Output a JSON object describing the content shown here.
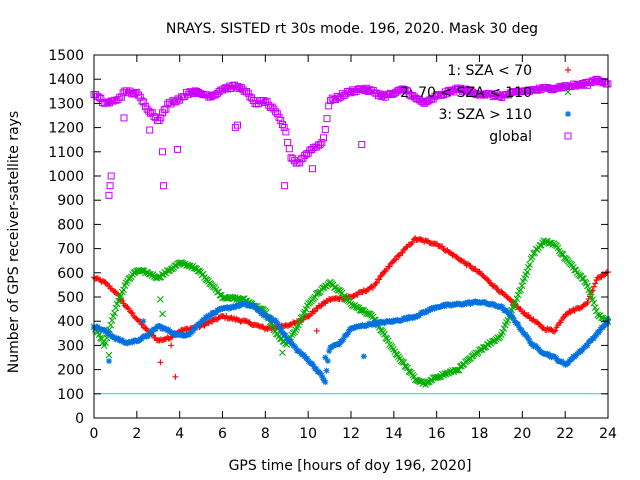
{
  "chart_data": {
    "type": "scatter",
    "title": "NRAYS. SISTED rt 30s mode. 196, 2020. Mask 30 deg",
    "xlabel": "GPS time [hours of doy 196, 2020]",
    "ylabel": "Number of GPS receiver-satellite rays",
    "xlim": [
      0,
      24
    ],
    "ylim": [
      0,
      1500
    ],
    "xticks": [
      0,
      2,
      4,
      6,
      8,
      10,
      12,
      14,
      16,
      18,
      20,
      22,
      24
    ],
    "yticks": [
      0,
      100,
      200,
      300,
      400,
      500,
      600,
      700,
      800,
      900,
      1000,
      1100,
      1200,
      1300,
      1400,
      1500
    ],
    "legend_position": "top-right",
    "reference_line": {
      "y": 100,
      "color": "#33cccc"
    },
    "series": [
      {
        "name": "1: SZA < 70",
        "marker": "+",
        "color": "#ff0000",
        "x": [
          0,
          0.5,
          1,
          1.5,
          2,
          2.5,
          3,
          3.5,
          4,
          5,
          6,
          7,
          8,
          9,
          10,
          10.5,
          11,
          12,
          13,
          14,
          15,
          16,
          17,
          18,
          19,
          20,
          21,
          21.5,
          22,
          23,
          23.5,
          24
        ],
        "y": [
          580,
          560,
          520,
          460,
          410,
          360,
          320,
          330,
          360,
          380,
          420,
          400,
          370,
          380,
          420,
          460,
          490,
          500,
          540,
          650,
          740,
          720,
          660,
          600,
          520,
          440,
          370,
          360,
          430,
          470,
          580,
          600
        ],
        "outliers_x": [
          3.1,
          3.6,
          3.8,
          10.4,
          13.5
        ],
        "outliers_y": [
          230,
          300,
          170,
          360,
          600
        ]
      },
      {
        "name": "2: 70 < SZA < 110",
        "marker": "x",
        "color": "#00b000",
        "x": [
          0,
          0.5,
          1,
          1.5,
          2,
          2.5,
          3,
          3.5,
          4,
          4.5,
          5,
          5.5,
          6,
          7,
          8,
          8.5,
          9,
          9.5,
          10,
          10.5,
          11,
          11.5,
          12,
          13,
          14,
          15,
          15.5,
          16,
          17,
          18,
          19,
          20,
          20.5,
          21,
          21.5,
          22,
          23,
          23.5,
          24
        ],
        "y": [
          380,
          300,
          450,
          560,
          610,
          600,
          580,
          610,
          640,
          630,
          600,
          550,
          500,
          490,
          440,
          350,
          300,
          380,
          470,
          520,
          560,
          520,
          470,
          420,
          280,
          160,
          140,
          170,
          200,
          280,
          340,
          550,
          680,
          730,
          720,
          660,
          560,
          430,
          400
        ],
        "outliers_x": [
          0.7,
          3.1,
          3.2,
          8.8
        ],
        "outliers_y": [
          260,
          490,
          430,
          270
        ]
      },
      {
        "name": "3: SZA > 110",
        "marker": "*",
        "color": "#0070e0",
        "x": [
          0,
          0.5,
          1,
          1.5,
          2,
          2.5,
          3,
          3.5,
          4,
          4.5,
          5,
          5.5,
          6,
          7,
          7.5,
          8,
          8.5,
          9,
          9.5,
          10,
          10.5,
          10.8,
          11,
          11.5,
          12,
          13,
          14,
          15,
          16,
          17,
          18,
          19,
          19.5,
          20,
          20.5,
          21,
          21.5,
          22,
          23,
          24
        ],
        "y": [
          380,
          360,
          330,
          310,
          320,
          340,
          380,
          360,
          340,
          350,
          400,
          430,
          450,
          470,
          460,
          420,
          400,
          330,
          280,
          240,
          190,
          150,
          290,
          310,
          370,
          390,
          400,
          420,
          460,
          470,
          480,
          460,
          420,
          360,
          300,
          270,
          250,
          220,
          300,
          400
        ],
        "outliers_x": [
          0.7,
          2.3,
          10.8,
          12.6
        ],
        "outliers_y": [
          235,
          400,
          250,
          255
        ]
      },
      {
        "name": "global",
        "marker": "square",
        "color": "#cc00ff",
        "x": [
          0,
          0.5,
          1,
          1.5,
          2,
          2.5,
          3,
          3.5,
          4,
          4.5,
          5,
          5.5,
          6,
          6.5,
          7,
          7.5,
          8,
          8.5,
          8.9,
          9.2,
          9.5,
          10,
          10.3,
          10.7,
          11,
          11.5,
          12,
          12.5,
          13,
          13.5,
          14,
          14.5,
          15,
          15.5,
          16,
          17,
          18,
          19,
          20,
          21,
          22,
          23,
          23.5,
          24
        ],
        "y": [
          1340,
          1300,
          1310,
          1350,
          1340,
          1280,
          1230,
          1300,
          1320,
          1350,
          1340,
          1330,
          1360,
          1370,
          1360,
          1300,
          1310,
          1260,
          1200,
          1080,
          1050,
          1100,
          1120,
          1140,
          1310,
          1330,
          1350,
          1360,
          1350,
          1330,
          1340,
          1360,
          1320,
          1300,
          1330,
          1360,
          1340,
          1330,
          1350,
          1360,
          1370,
          1380,
          1400,
          1380
        ],
        "outliers_x": [
          0.7,
          0.75,
          0.8,
          1.4,
          2.6,
          3.2,
          3.25,
          3.9,
          6.6,
          6.7,
          8.9,
          10.2,
          12.5
        ],
        "outliers_y": [
          920,
          960,
          1000,
          1240,
          1190,
          1100,
          960,
          1110,
          1200,
          1210,
          960,
          1030,
          1130
        ]
      }
    ]
  }
}
